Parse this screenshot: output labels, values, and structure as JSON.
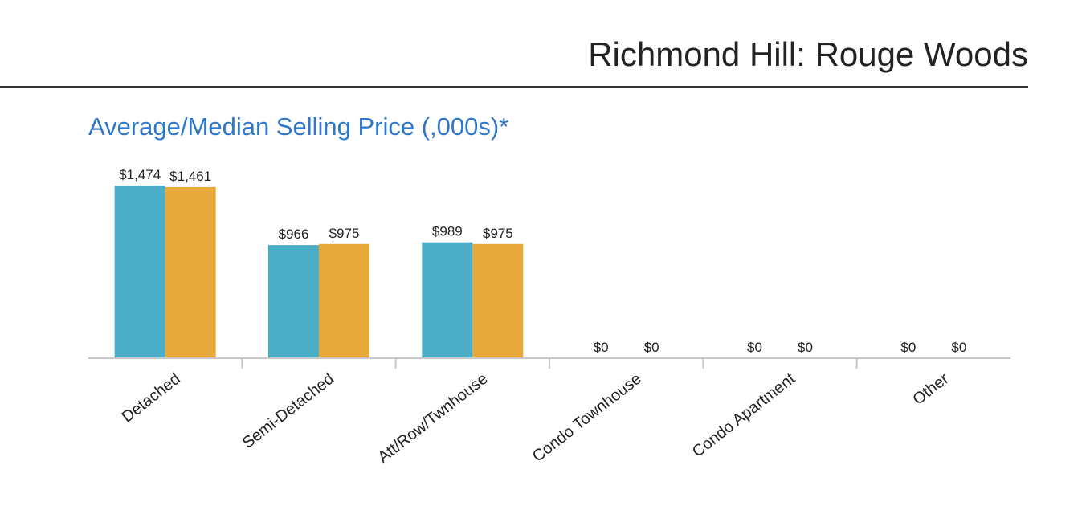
{
  "header": {
    "title": "Richmond Hill: Rouge Woods"
  },
  "colors": {
    "average": "#4badc6",
    "median": "#e8a93b",
    "title_blue": "#2f77c9",
    "axis": "#c8c8c8",
    "text": "#222222"
  },
  "chart_data": {
    "type": "bar",
    "title": "Average/Median Selling Price (,000s)*",
    "categories": [
      "Detached",
      "Semi-Detached",
      "Att/Row/Twnhouse",
      "Condo Townhouse",
      "Condo Apartment",
      "Other"
    ],
    "series": [
      {
        "values": [
          1474,
          966,
          989,
          0,
          0,
          0
        ],
        "labels": [
          "$1,474",
          "$966",
          "$989",
          "$0",
          "$0",
          "$0"
        ]
      },
      {
        "values": [
          1461,
          975,
          975,
          0,
          0,
          0
        ],
        "labels": [
          "$1,461",
          "$975",
          "$975",
          "$0",
          "$0",
          "$0"
        ]
      }
    ],
    "ylim": [
      0,
      1500
    ],
    "grid": false,
    "legend": "none"
  }
}
